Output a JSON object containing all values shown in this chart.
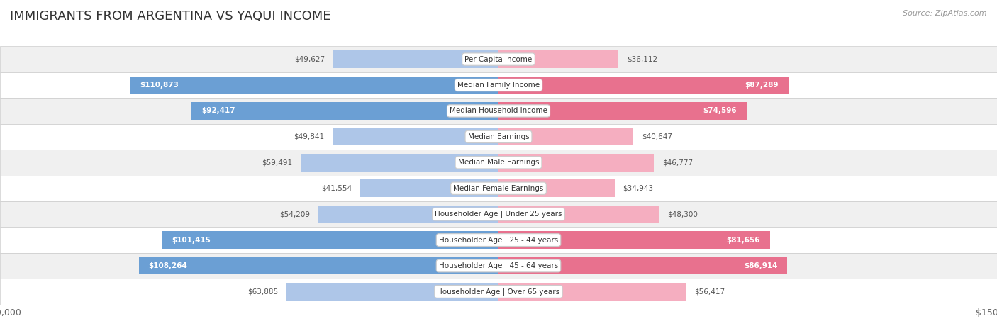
{
  "title": "IMMIGRANTS FROM ARGENTINA VS YAQUI INCOME",
  "source": "Source: ZipAtlas.com",
  "categories": [
    "Per Capita Income",
    "Median Family Income",
    "Median Household Income",
    "Median Earnings",
    "Median Male Earnings",
    "Median Female Earnings",
    "Householder Age | Under 25 years",
    "Householder Age | 25 - 44 years",
    "Householder Age | 45 - 64 years",
    "Householder Age | Over 65 years"
  ],
  "argentina_values": [
    49627,
    110873,
    92417,
    49841,
    59491,
    41554,
    54209,
    101415,
    108264,
    63885
  ],
  "yaqui_values": [
    36112,
    87289,
    74596,
    40647,
    46777,
    34943,
    48300,
    81656,
    86914,
    56417
  ],
  "argentina_labels": [
    "$49,627",
    "$110,873",
    "$92,417",
    "$49,841",
    "$59,491",
    "$41,554",
    "$54,209",
    "$101,415",
    "$108,264",
    "$63,885"
  ],
  "yaqui_labels": [
    "$36,112",
    "$87,289",
    "$74,596",
    "$40,647",
    "$46,777",
    "$34,943",
    "$48,300",
    "$81,656",
    "$86,914",
    "$56,417"
  ],
  "argentina_color_light": "#aec6e8",
  "argentina_color_strong": "#6b9fd4",
  "yaqui_color_light": "#f5aec0",
  "yaqui_color_strong": "#e8718e",
  "argentina_legend_color": "#7bafd4",
  "yaqui_legend_color": "#f08090",
  "max_value": 150000,
  "bg_color": "#ffffff",
  "row_bg_odd": "#f0f0f0",
  "row_bg_even": "#ffffff",
  "threshold_inside": 70000,
  "outer_border_color": "#cccccc"
}
